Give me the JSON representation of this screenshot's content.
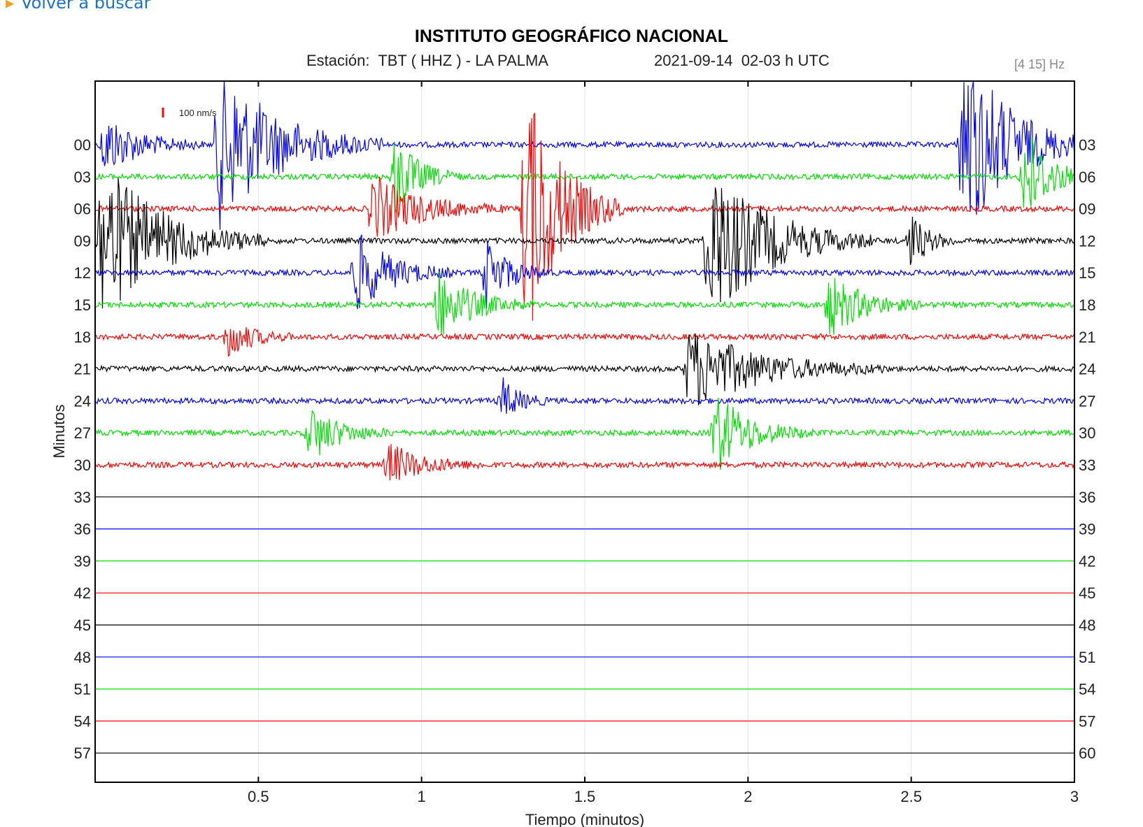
{
  "nav": {
    "back_label": "Volver a buscar"
  },
  "header": {
    "title": "INSTITUTO GEOGRÁFICO NACIONAL",
    "station": "Estación:  TBT ( HHZ ) - LA PALMA",
    "datetime": "2021-09-14  02-03 h UTC",
    "filter": "[4 15] Hz"
  },
  "scale_label": "100 nm/s",
  "chart_data": {
    "type": "line",
    "title": "INSTITUTO GEOGRÁFICO NACIONAL",
    "xlabel": "Tiempo (minutos)",
    "ylabel": "Minutos",
    "xlim": [
      0,
      3
    ],
    "x_ticks": [
      "0.5",
      "1",
      "1.5",
      "2",
      "2.5",
      "3"
    ],
    "x_tick_values": [
      0.5,
      1,
      1.5,
      2,
      2.5,
      3
    ],
    "left_labels": [
      "00",
      "03",
      "06",
      "09",
      "12",
      "15",
      "18",
      "21",
      "24",
      "27",
      "30",
      "33",
      "36",
      "39",
      "42",
      "45",
      "48",
      "51",
      "54",
      "57"
    ],
    "right_labels": [
      "03",
      "06",
      "09",
      "12",
      "15",
      "18",
      "21",
      "24",
      "27",
      "30",
      "33",
      "36",
      "39",
      "42",
      "45",
      "48",
      "51",
      "54",
      "57",
      "60"
    ],
    "trace_colors": [
      "#0000ff",
      "#00e000",
      "#ff0000",
      "#000000"
    ],
    "data_end_trace": 10,
    "events": [
      {
        "trace": 0,
        "x": 0.03,
        "amp": 45,
        "dur": 0.3
      },
      {
        "trace": 0,
        "x": 0.38,
        "amp": 120,
        "dur": 0.5
      },
      {
        "trace": 0,
        "x": 2.66,
        "amp": 150,
        "dur": 0.4
      },
      {
        "trace": 1,
        "x": 0.92,
        "amp": 60,
        "dur": 0.2
      },
      {
        "trace": 1,
        "x": 2.85,
        "amp": 80,
        "dur": 0.2
      },
      {
        "trace": 2,
        "x": 0.85,
        "amp": 50,
        "dur": 0.4
      },
      {
        "trace": 2,
        "x": 1.32,
        "amp": 200,
        "dur": 0.3
      },
      {
        "trace": 3,
        "x": 0.02,
        "amp": 120,
        "dur": 0.5
      },
      {
        "trace": 3,
        "x": 1.88,
        "amp": 120,
        "dur": 0.5
      },
      {
        "trace": 3,
        "x": 2.5,
        "amp": 40,
        "dur": 0.15
      },
      {
        "trace": 4,
        "x": 0.8,
        "amp": 60,
        "dur": 0.3
      },
      {
        "trace": 4,
        "x": 1.2,
        "amp": 50,
        "dur": 0.2
      },
      {
        "trace": 5,
        "x": 1.05,
        "amp": 50,
        "dur": 0.3
      },
      {
        "trace": 5,
        "x": 2.25,
        "amp": 45,
        "dur": 0.3
      },
      {
        "trace": 6,
        "x": 0.41,
        "amp": 30,
        "dur": 0.2
      },
      {
        "trace": 7,
        "x": 1.82,
        "amp": 60,
        "dur": 0.6
      },
      {
        "trace": 8,
        "x": 1.25,
        "amp": 30,
        "dur": 0.15
      },
      {
        "trace": 9,
        "x": 0.66,
        "amp": 40,
        "dur": 0.25
      },
      {
        "trace": 9,
        "x": 1.9,
        "amp": 60,
        "dur": 0.3
      },
      {
        "trace": 10,
        "x": 0.9,
        "amp": 30,
        "dur": 0.3
      }
    ]
  }
}
